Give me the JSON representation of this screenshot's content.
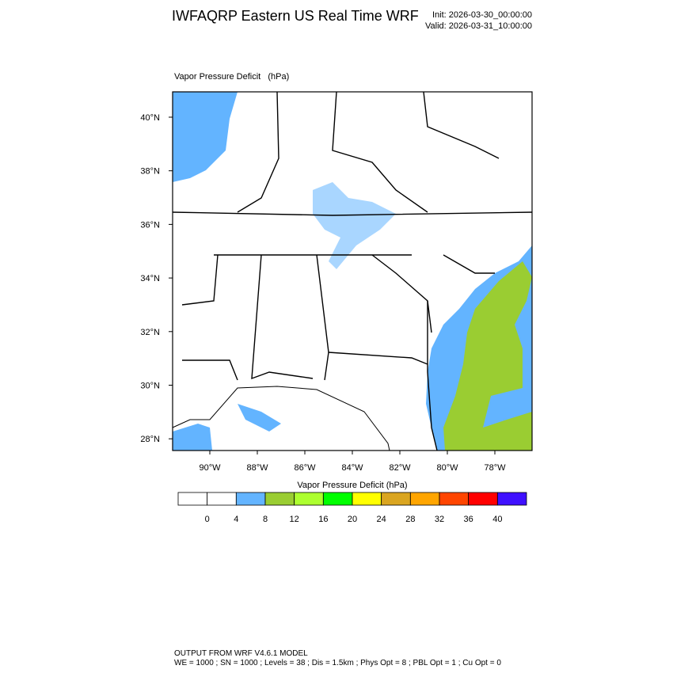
{
  "header": {
    "title": "IWFAQRP Eastern US Real Time WRF",
    "init": "Init: 2026-03-30_00:00:00",
    "valid": "Valid: 2026-03-31_10:00:00"
  },
  "map": {
    "field_label": "Vapor Pressure Deficit   (hPa)",
    "lat_labels": [
      "40°N",
      "38°N",
      "36°N",
      "34°N",
      "32°N",
      "30°N",
      "28°N"
    ],
    "lon_labels": [
      "90°W",
      "88°W",
      "86°W",
      "84°W",
      "82°W",
      "80°W",
      "78°W"
    ]
  },
  "colorbar": {
    "title": "Vapor Pressure Deficit  (hPa)",
    "colors": [
      "#ffffff",
      "#ffffff",
      "#63b4ff",
      "#9acd32",
      "#adff2f",
      "#00ff00",
      "#ffff00",
      "#daa520",
      "#ffa500",
      "#ff4500",
      "#ff0000",
      "#3f10ff"
    ],
    "labels": [
      0,
      4,
      8,
      12,
      16,
      20,
      24,
      28,
      32,
      36,
      40
    ]
  },
  "footer": {
    "line1": "OUTPUT FROM WRF V4.6.1 MODEL",
    "line2": "WE = 1000 ; SN = 1000 ; Levels = 38 ; Dis = 1.5km ; Phys Opt = 8 ; PBL Opt = 1 ; Cu Opt = 0"
  }
}
